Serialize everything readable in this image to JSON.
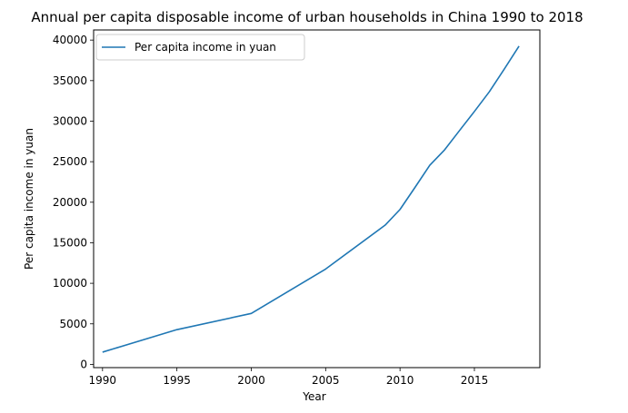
{
  "chart_data": {
    "type": "line",
    "title": "Annual per capita disposable income of urban households in China 1990 to 2018",
    "xlabel": "Year",
    "ylabel": "Per capita income in yuan",
    "xlim": [
      1989.4,
      2019.4
    ],
    "ylim": [
      -400,
      41250
    ],
    "xticks": [
      1990,
      1995,
      2000,
      2005,
      2010,
      2015
    ],
    "yticks": [
      0,
      5000,
      10000,
      15000,
      20000,
      25000,
      30000,
      35000,
      40000
    ],
    "grid": false,
    "legend_position": "upper-left",
    "series": [
      {
        "name": "Per capita income in yuan",
        "color": "#1f77b4",
        "x": [
          1990,
          1995,
          2000,
          2005,
          2009,
          2010,
          2011,
          2012,
          2013,
          2014,
          2015,
          2016,
          2017,
          2018
        ],
        "y": [
          1510,
          4283,
          6280,
          11759,
          17175,
          19109,
          21810,
          24565,
          26467,
          28844,
          31195,
          33616,
          36396,
          39251
        ]
      }
    ]
  }
}
